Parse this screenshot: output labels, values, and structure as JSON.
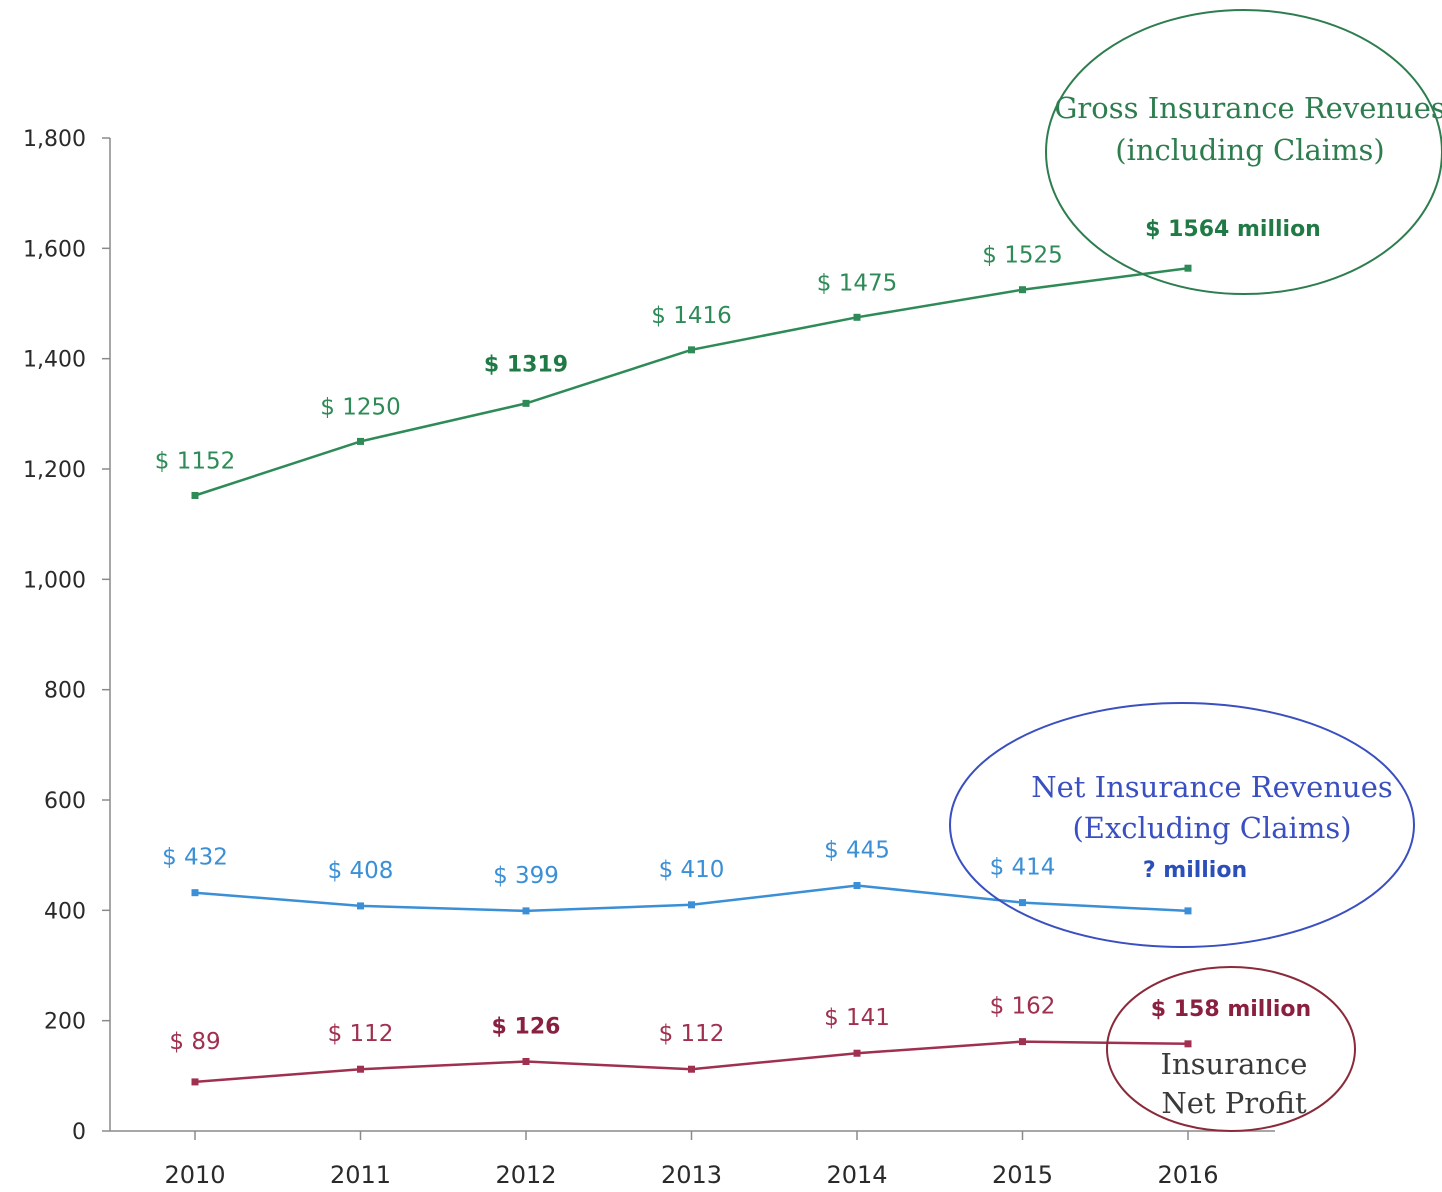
{
  "chart_data": {
    "type": "line",
    "categories": [
      "2010",
      "2011",
      "2012",
      "2013",
      "2014",
      "2015",
      "2016"
    ],
    "ylim": [
      0,
      1800
    ],
    "yticks": [
      0,
      200,
      400,
      600,
      800,
      1000,
      1200,
      1400,
      1600,
      1800
    ],
    "ytick_labels": [
      "0",
      "200",
      "400",
      "600",
      "800",
      "1,000",
      "1,200",
      "1,400",
      "1,600",
      "1,800"
    ],
    "grid": false,
    "series": [
      {
        "key": "gross",
        "color": "#2e8b57",
        "values": [
          1152,
          1250,
          1319,
          1416,
          1475,
          1525,
          1564
        ],
        "labels": [
          "$ 1152",
          "$ 1250",
          "$ 1319",
          "$ 1416",
          "$ 1475",
          "$ 1525",
          "$ 1564 million"
        ],
        "bold": [
          false,
          false,
          true,
          false,
          false,
          false,
          true
        ],
        "callout": {
          "lines": [
            "Gross Insurance Revenues",
            "(including Claims)"
          ],
          "color": "#2e7d4f"
        }
      },
      {
        "key": "net",
        "color": "#3a8fd6",
        "values": [
          432,
          408,
          399,
          410,
          445,
          414,
          399
        ],
        "labels": [
          "$ 432",
          "$ 408",
          "$ 399",
          "$ 410",
          "$ 445",
          "$ 414",
          "? million"
        ],
        "bold": [
          false,
          false,
          false,
          false,
          false,
          false,
          true
        ],
        "label_color_overrides": {
          "6": "#2a4fb8"
        },
        "callout": {
          "lines": [
            "Net Insurance Revenues",
            "(Excluding Claims)"
          ],
          "color": "#3a4fc0"
        }
      },
      {
        "key": "profit",
        "color": "#a0304f",
        "values": [
          89,
          112,
          126,
          112,
          141,
          162,
          158
        ],
        "labels": [
          "$ 89",
          "$ 112",
          "$ 126",
          "$ 112",
          "$ 141",
          "$ 162",
          "$ 158 million"
        ],
        "bold": [
          false,
          false,
          true,
          false,
          false,
          false,
          true
        ],
        "callout": {
          "lines": [
            "Insurance",
            "Net Profit"
          ],
          "color": "#8a2a3a"
        }
      }
    ]
  }
}
